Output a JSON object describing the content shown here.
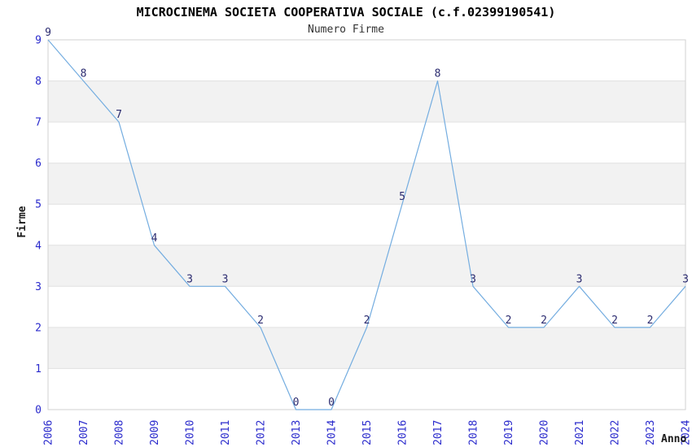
{
  "chart_data": {
    "type": "line",
    "title": "MICROCINEMA SOCIETA COOPERATIVA SOCIALE (c.f.02399190541)",
    "subtitle": "Numero Firme",
    "xlabel": "Anno",
    "ylabel": "Firme",
    "x": [
      2006,
      2007,
      2008,
      2009,
      2010,
      2011,
      2012,
      2013,
      2014,
      2015,
      2016,
      2017,
      2018,
      2019,
      2020,
      2021,
      2022,
      2023,
      2024
    ],
    "values": [
      9,
      8,
      7,
      4,
      3,
      3,
      2,
      0,
      0,
      2,
      5,
      8,
      3,
      2,
      2,
      3,
      2,
      2,
      3
    ],
    "ylim": [
      0,
      9
    ],
    "yticks": [
      0,
      1,
      2,
      3,
      4,
      5,
      6,
      7,
      8,
      9
    ],
    "grid": "horizontal-bands",
    "legend": "none",
    "point_labels": true,
    "colors": {
      "line": "#74ade0",
      "tick_label": "#2a2acc",
      "point_label": "#2b2b70",
      "band": "#f2f2f2",
      "gridline": "#e0e0e0",
      "border": "#d2d2d2",
      "title": "#000000",
      "subtitle": "#333333",
      "axis_label": "#1a1a1a",
      "background": "#ffffff"
    }
  }
}
